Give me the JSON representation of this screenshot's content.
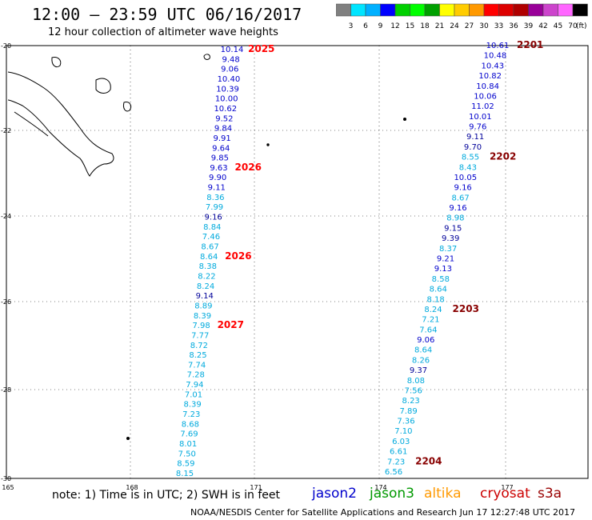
{
  "header": {
    "title": "12:00 – 23:59 UTC 06/16/2017",
    "subtitle": "12 hour collection of altimeter wave heights"
  },
  "colorbar": {
    "unit_label": "(ft)",
    "ticks": [
      "3",
      "6",
      "9",
      "12",
      "15",
      "18",
      "21",
      "24",
      "27",
      "30",
      "33",
      "36",
      "39",
      "42",
      "45",
      "70"
    ],
    "colors": [
      "#808080",
      "#00e5ff",
      "#00b0ff",
      "#0000ff",
      "#00d000",
      "#00ff00",
      "#00a000",
      "#ffff00",
      "#ffcc00",
      "#ff9900",
      "#ff0000",
      "#dd0000",
      "#b00000",
      "#990099",
      "#cc44cc",
      "#ff66ff",
      "#000000"
    ]
  },
  "axes": {
    "lon_labels": [
      "165",
      "168",
      "171",
      "174",
      "177"
    ],
    "lat_labels": [
      "-20",
      "-22",
      "-24",
      "-26",
      "-28",
      "-30"
    ]
  },
  "colors": {
    "jason2": "#0000cc",
    "jason3": "#009900",
    "altika": "#ff9900",
    "cryosat": "#cc0000",
    "s3a": "#990000",
    "light": "#00aadd",
    "mid": "#0000cc",
    "dark": "#000099",
    "time_red": "#ff0000",
    "time_dark": "#880000"
  },
  "tracks": [
    {
      "points": [
        {
          "v": "10.14",
          "c": "mid"
        },
        {
          "v": "9.48",
          "c": "mid"
        },
        {
          "v": "9.06",
          "c": "mid"
        },
        {
          "v": "10.40",
          "c": "mid"
        },
        {
          "v": "10.39",
          "c": "mid"
        },
        {
          "v": "10.00",
          "c": "mid"
        },
        {
          "v": "10.62",
          "c": "mid"
        },
        {
          "v": "9.52",
          "c": "mid"
        },
        {
          "v": "9.84",
          "c": "mid"
        },
        {
          "v": "9.91",
          "c": "mid"
        },
        {
          "v": "9.64",
          "c": "mid"
        },
        {
          "v": "9.85",
          "c": "mid"
        },
        {
          "v": "9.63",
          "c": "mid"
        },
        {
          "v": "9.90",
          "c": "mid"
        },
        {
          "v": "9.11",
          "c": "mid"
        },
        {
          "v": "8.36",
          "c": "light"
        },
        {
          "v": "7.99",
          "c": "light"
        },
        {
          "v": "9.16",
          "c": "dark"
        },
        {
          "v": "8.84",
          "c": "light"
        },
        {
          "v": "7.46",
          "c": "light"
        },
        {
          "v": "8.67",
          "c": "light"
        },
        {
          "v": "8.64",
          "c": "light"
        },
        {
          "v": "8.38",
          "c": "light"
        },
        {
          "v": "8.22",
          "c": "light"
        },
        {
          "v": "8.24",
          "c": "light"
        },
        {
          "v": "9.14",
          "c": "dark"
        },
        {
          "v": "8.89",
          "c": "light"
        },
        {
          "v": "8.39",
          "c": "light"
        },
        {
          "v": "7.98",
          "c": "light"
        },
        {
          "v": "7.77",
          "c": "light"
        },
        {
          "v": "8.72",
          "c": "light"
        },
        {
          "v": "8.25",
          "c": "light"
        },
        {
          "v": "7.74",
          "c": "light"
        },
        {
          "v": "7.28",
          "c": "light"
        },
        {
          "v": "7.94",
          "c": "light"
        },
        {
          "v": "7.01",
          "c": "light"
        },
        {
          "v": "8.39",
          "c": "light"
        },
        {
          "v": "7.23",
          "c": "light"
        },
        {
          "v": "8.68",
          "c": "light"
        },
        {
          "v": "7.69",
          "c": "light"
        },
        {
          "v": "8.01",
          "c": "light"
        },
        {
          "v": "7.50",
          "c": "light"
        },
        {
          "v": "8.59",
          "c": "light"
        },
        {
          "v": "8.15",
          "c": "light"
        }
      ],
      "times": [
        "2025",
        "2026",
        "2026",
        "2027"
      ]
    },
    {
      "points": [
        {
          "v": "10.61",
          "c": "mid"
        },
        {
          "v": "10.48",
          "c": "mid"
        },
        {
          "v": "10.43",
          "c": "mid"
        },
        {
          "v": "10.82",
          "c": "mid"
        },
        {
          "v": "10.84",
          "c": "mid"
        },
        {
          "v": "10.06",
          "c": "mid"
        },
        {
          "v": "11.02",
          "c": "mid"
        },
        {
          "v": "10.01",
          "c": "mid"
        },
        {
          "v": "9.76",
          "c": "mid"
        },
        {
          "v": "9.11",
          "c": "dark"
        },
        {
          "v": "9.70",
          "c": "dark"
        },
        {
          "v": "8.55",
          "c": "light"
        },
        {
          "v": "8.43",
          "c": "light"
        },
        {
          "v": "10.05",
          "c": "mid"
        },
        {
          "v": "9.16",
          "c": "mid"
        },
        {
          "v": "8.67",
          "c": "light"
        },
        {
          "v": "9.16",
          "c": "mid"
        },
        {
          "v": "8.98",
          "c": "light"
        },
        {
          "v": "9.15",
          "c": "dark"
        },
        {
          "v": "9.39",
          "c": "dark"
        },
        {
          "v": "8.37",
          "c": "light"
        },
        {
          "v": "9.21",
          "c": "mid"
        },
        {
          "v": "9.13",
          "c": "mid"
        },
        {
          "v": "8.58",
          "c": "light"
        },
        {
          "v": "8.64",
          "c": "light"
        },
        {
          "v": "8.18",
          "c": "light"
        },
        {
          "v": "8.24",
          "c": "light"
        },
        {
          "v": "7.21",
          "c": "light"
        },
        {
          "v": "7.64",
          "c": "light"
        },
        {
          "v": "9.06",
          "c": "mid"
        },
        {
          "v": "8.64",
          "c": "light"
        },
        {
          "v": "8.26",
          "c": "light"
        },
        {
          "v": "9.37",
          "c": "dark"
        },
        {
          "v": "8.08",
          "c": "light"
        },
        {
          "v": "7.56",
          "c": "light"
        },
        {
          "v": "8.23",
          "c": "light"
        },
        {
          "v": "7.89",
          "c": "light"
        },
        {
          "v": "7.36",
          "c": "light"
        },
        {
          "v": "7.10",
          "c": "light"
        },
        {
          "v": "6.03",
          "c": "light"
        },
        {
          "v": "6.61",
          "c": "light"
        },
        {
          "v": "7.23",
          "c": "light"
        },
        {
          "v": "6.56",
          "c": "light"
        }
      ],
      "times": [
        "2201",
        "2202",
        "2203",
        "2204"
      ]
    }
  ],
  "footer": {
    "note": "note: 1) Time is in UTC; 2) SWH is in feet",
    "credit": "NOAA/NESDIS Center for Satellite Applications and Research   Jun 17 12:27:48 UTC 2017",
    "satellites": {
      "jason2": "jason2",
      "jason3": "jason3",
      "altika": "altika",
      "cryosat": "cryosat",
      "s3a": "s3a"
    }
  }
}
